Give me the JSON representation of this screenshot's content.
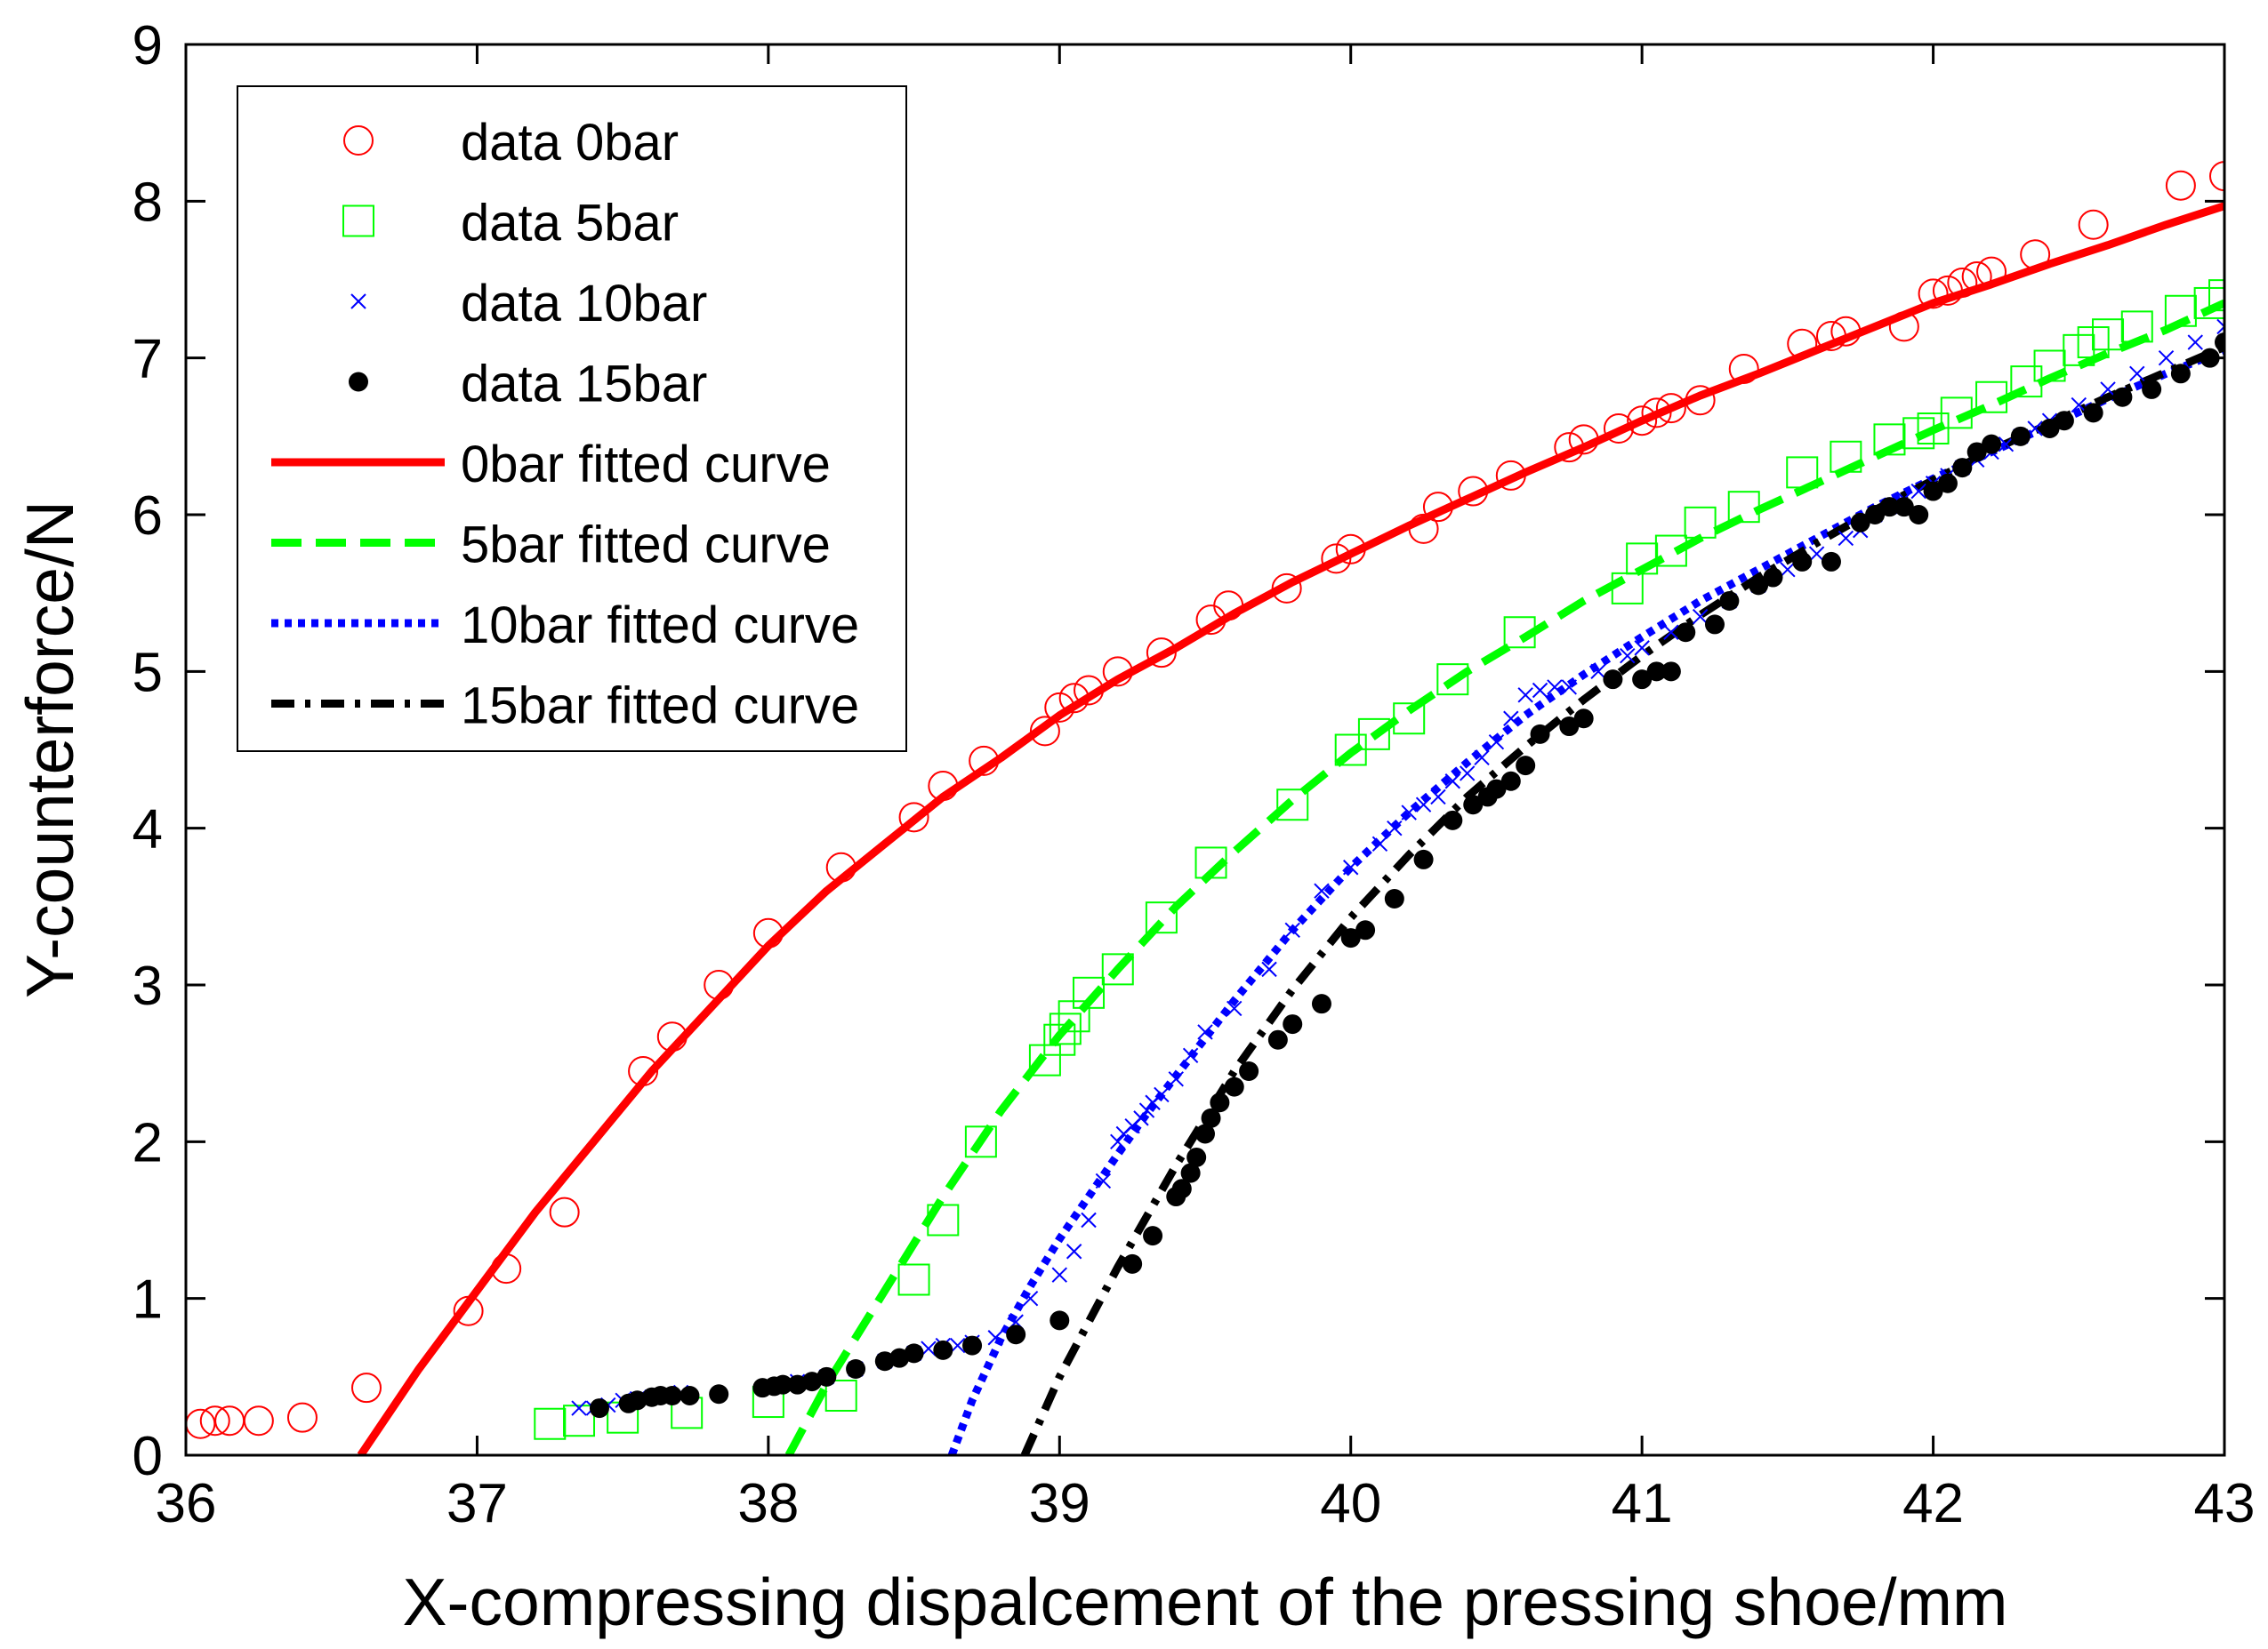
{
  "chart_data": {
    "type": "scatter",
    "xlabel": "X-compressing dispalcement of the pressing shoe/mm",
    "ylabel": "Y-counterforce/N",
    "xlim": [
      36,
      43
    ],
    "ylim": [
      0,
      9
    ],
    "x_ticks": [
      "36",
      "37",
      "38",
      "39",
      "40",
      "41",
      "42",
      "43"
    ],
    "y_ticks": [
      "0",
      "1",
      "2",
      "3",
      "4",
      "5",
      "6",
      "7",
      "8",
      "9"
    ],
    "grid": false,
    "legend_position": "top-left",
    "series": [
      {
        "name": "data 0bar",
        "kind": "markers",
        "marker": "circle",
        "color": "#ff0000",
        "x": [
          36.05,
          36.1,
          36.15,
          36.25,
          36.4,
          36.62,
          36.97,
          37.1,
          37.3,
          37.57,
          37.67,
          37.83,
          38.0,
          38.25,
          38.5,
          38.6,
          38.74,
          38.95,
          39.0,
          39.05,
          39.1,
          39.2,
          39.35,
          39.52,
          39.58,
          39.78,
          39.95,
          40.0,
          40.25,
          40.3,
          40.42,
          40.55,
          40.75,
          40.8,
          40.92,
          41.0,
          41.05,
          41.1,
          41.2,
          41.35,
          41.55,
          41.65,
          41.7,
          41.9,
          42.0,
          42.05,
          42.1,
          42.15,
          42.2,
          42.35,
          42.55,
          42.85,
          43.0
        ],
        "y": [
          0.2,
          0.22,
          0.22,
          0.22,
          0.24,
          0.43,
          0.92,
          1.19,
          1.55,
          2.45,
          2.67,
          3.0,
          3.33,
          3.75,
          4.07,
          4.27,
          4.43,
          4.62,
          4.77,
          4.83,
          4.88,
          5.0,
          5.12,
          5.33,
          5.42,
          5.53,
          5.72,
          5.78,
          5.91,
          6.05,
          6.15,
          6.25,
          6.43,
          6.48,
          6.55,
          6.6,
          6.65,
          6.68,
          6.73,
          6.93,
          7.09,
          7.14,
          7.17,
          7.2,
          7.41,
          7.43,
          7.48,
          7.52,
          7.55,
          7.66,
          7.85,
          8.1,
          8.16
        ]
      },
      {
        "name": "data 5bar",
        "kind": "markers",
        "marker": "square",
        "color": "#00ff00",
        "x": [
          37.25,
          37.35,
          37.5,
          37.72,
          38.0,
          38.25,
          38.5,
          38.6,
          38.73,
          38.95,
          39.0,
          39.02,
          39.05,
          39.1,
          39.2,
          39.35,
          39.52,
          39.8,
          40.0,
          40.08,
          40.2,
          40.35,
          40.58,
          40.95,
          41.0,
          41.1,
          41.2,
          41.35,
          41.55,
          41.7,
          41.85,
          41.95,
          42.0,
          42.08,
          42.2,
          42.32,
          42.4,
          42.5,
          42.55,
          42.6,
          42.7,
          42.85,
          42.95,
          43.0
        ],
        "y": [
          0.2,
          0.22,
          0.24,
          0.27,
          0.34,
          0.38,
          1.12,
          1.5,
          2.0,
          2.52,
          2.65,
          2.72,
          2.8,
          2.95,
          3.1,
          3.43,
          3.78,
          4.15,
          4.5,
          4.6,
          4.7,
          4.95,
          5.25,
          5.53,
          5.72,
          5.77,
          5.95,
          6.05,
          6.27,
          6.37,
          6.48,
          6.52,
          6.55,
          6.65,
          6.75,
          6.85,
          6.95,
          7.05,
          7.1,
          7.15,
          7.2,
          7.3,
          7.35,
          7.4
        ]
      },
      {
        "name": "data 10bar",
        "kind": "markers",
        "marker": "x",
        "color": "#0000ff",
        "x": [
          37.35,
          37.4,
          37.45,
          37.5,
          37.55,
          37.6,
          37.65,
          37.7,
          38.0,
          38.1,
          38.2,
          38.3,
          38.4,
          38.5,
          38.55,
          38.6,
          38.65,
          38.7,
          38.78,
          38.85,
          38.9,
          39.0,
          39.05,
          39.1,
          39.15,
          39.2,
          39.22,
          39.25,
          39.28,
          39.3,
          39.32,
          39.35,
          39.4,
          39.45,
          39.5,
          39.6,
          39.72,
          39.8,
          39.9,
          40.0,
          40.1,
          40.15,
          40.2,
          40.25,
          40.3,
          40.35,
          40.4,
          40.45,
          40.5,
          40.55,
          40.6,
          40.65,
          40.7,
          40.75,
          40.85,
          40.95,
          41.0,
          41.1,
          41.2,
          41.3,
          41.4,
          41.5,
          41.6,
          41.7,
          41.75,
          41.8,
          41.85,
          41.9,
          41.95,
          42.0,
          42.05,
          42.1,
          42.15,
          42.2,
          42.25,
          42.3,
          42.35,
          42.4,
          42.5,
          42.6,
          42.7,
          42.8,
          42.9,
          43.0
        ],
        "y": [
          0.3,
          0.3,
          0.32,
          0.35,
          0.36,
          0.37,
          0.38,
          0.4,
          0.43,
          0.47,
          0.5,
          0.55,
          0.6,
          0.65,
          0.68,
          0.7,
          0.7,
          0.72,
          0.75,
          0.85,
          1.0,
          1.15,
          1.3,
          1.5,
          1.75,
          2.0,
          2.05,
          2.1,
          2.15,
          2.2,
          2.25,
          2.3,
          2.4,
          2.55,
          2.7,
          2.85,
          3.1,
          3.35,
          3.6,
          3.75,
          3.9,
          4.0,
          4.1,
          4.15,
          4.2,
          4.3,
          4.35,
          4.45,
          4.55,
          4.7,
          4.85,
          4.88,
          4.9,
          4.9,
          5.0,
          5.1,
          5.15,
          5.25,
          5.35,
          5.45,
          5.55,
          5.65,
          5.75,
          5.85,
          5.9,
          6.0,
          6.05,
          6.1,
          6.15,
          6.2,
          6.25,
          6.3,
          6.35,
          6.4,
          6.45,
          6.5,
          6.55,
          6.6,
          6.7,
          6.8,
          6.9,
          7.0,
          7.1,
          7.2
        ]
      },
      {
        "name": "data 15bar",
        "kind": "markers",
        "marker": "dot",
        "color": "#000000",
        "x": [
          37.42,
          37.52,
          37.55,
          37.6,
          37.63,
          37.67,
          37.73,
          37.83,
          37.98,
          38.02,
          38.05,
          38.1,
          38.15,
          38.2,
          38.3,
          38.4,
          38.45,
          38.5,
          38.6,
          38.7,
          38.85,
          39.0,
          39.25,
          39.32,
          39.4,
          39.42,
          39.45,
          39.47,
          39.5,
          39.52,
          39.55,
          39.6,
          39.65,
          39.75,
          39.8,
          39.9,
          40.0,
          40.05,
          40.15,
          40.25,
          40.35,
          40.42,
          40.47,
          40.5,
          40.55,
          40.6,
          40.65,
          40.75,
          40.8,
          40.9,
          41.0,
          41.05,
          41.1,
          41.15,
          41.25,
          41.3,
          41.4,
          41.45,
          41.55,
          41.65,
          41.75,
          41.8,
          41.85,
          41.9,
          41.95,
          42.0,
          42.05,
          42.1,
          42.15,
          42.2,
          42.3,
          42.4,
          42.45,
          42.55,
          42.65,
          42.75,
          42.85,
          42.95,
          43.0
        ],
        "y": [
          0.3,
          0.33,
          0.35,
          0.37,
          0.38,
          0.38,
          0.38,
          0.39,
          0.43,
          0.44,
          0.45,
          0.45,
          0.47,
          0.5,
          0.55,
          0.6,
          0.62,
          0.65,
          0.67,
          0.7,
          0.77,
          0.86,
          1.22,
          1.4,
          1.65,
          1.7,
          1.8,
          1.9,
          2.05,
          2.15,
          2.25,
          2.35,
          2.45,
          2.65,
          2.75,
          2.88,
          3.3,
          3.35,
          3.55,
          3.8,
          4.05,
          4.15,
          4.2,
          4.25,
          4.3,
          4.4,
          4.6,
          4.65,
          4.7,
          4.95,
          4.95,
          5.0,
          5.0,
          5.25,
          5.3,
          5.45,
          5.55,
          5.6,
          5.7,
          5.7,
          5.95,
          6.0,
          6.05,
          6.05,
          6.0,
          6.15,
          6.2,
          6.3,
          6.4,
          6.45,
          6.5,
          6.55,
          6.6,
          6.65,
          6.75,
          6.8,
          6.9,
          7.0,
          7.1
        ]
      },
      {
        "name": "0bar fitted curve",
        "kind": "line",
        "dash": "solid",
        "color": "#ff0000",
        "x": [
          36.6,
          36.8,
          37.0,
          37.2,
          37.4,
          37.6,
          37.8,
          38.0,
          38.2,
          38.4,
          38.6,
          38.8,
          39.0,
          39.2,
          39.4,
          39.6,
          39.8,
          40.0,
          40.2,
          40.4,
          40.6,
          40.8,
          41.0,
          41.2,
          41.4,
          41.6,
          41.8,
          42.0,
          42.2,
          42.4,
          42.6,
          42.8,
          43.0
        ],
        "y": [
          0.0,
          0.55,
          1.05,
          1.55,
          2.0,
          2.45,
          2.85,
          3.25,
          3.6,
          3.9,
          4.2,
          4.45,
          4.72,
          4.95,
          5.15,
          5.37,
          5.57,
          5.75,
          5.93,
          6.1,
          6.27,
          6.43,
          6.6,
          6.76,
          6.9,
          7.05,
          7.2,
          7.35,
          7.47,
          7.6,
          7.72,
          7.85,
          7.97
        ]
      },
      {
        "name": "5bar fitted curve",
        "kind": "line",
        "dash": "dashed",
        "color": "#00ff00",
        "x": [
          38.07,
          38.2,
          38.4,
          38.6,
          38.8,
          39.0,
          39.2,
          39.4,
          39.6,
          39.8,
          40.0,
          40.2,
          40.4,
          40.6,
          40.8,
          41.0,
          41.2,
          41.4,
          41.6,
          41.8,
          42.0,
          42.2,
          42.4,
          42.6,
          42.8,
          43.0
        ],
        "y": [
          0.0,
          0.45,
          1.05,
          1.65,
          2.2,
          2.68,
          3.1,
          3.5,
          3.85,
          4.18,
          4.48,
          4.75,
          5.0,
          5.22,
          5.45,
          5.65,
          5.85,
          6.03,
          6.2,
          6.37,
          6.54,
          6.7,
          6.87,
          7.03,
          7.18,
          7.35
        ]
      },
      {
        "name": "10bar fitted curve",
        "kind": "line",
        "dash": "dotted",
        "color": "#0000ff",
        "x": [
          38.63,
          38.7,
          38.8,
          38.9,
          39.0,
          39.1,
          39.2,
          39.3,
          39.4,
          39.6,
          39.8,
          40.0,
          40.2,
          40.4,
          40.6,
          40.8,
          41.0,
          41.2,
          41.4,
          41.6,
          41.8,
          42.0,
          42.2,
          42.4,
          42.6,
          42.8,
          43.0
        ],
        "y": [
          0.0,
          0.35,
          0.75,
          1.08,
          1.38,
          1.65,
          1.92,
          2.18,
          2.42,
          2.9,
          3.35,
          3.75,
          4.1,
          4.42,
          4.72,
          4.98,
          5.22,
          5.45,
          5.65,
          5.85,
          6.05,
          6.23,
          6.4,
          6.57,
          6.74,
          6.9,
          7.05
        ]
      },
      {
        "name": "15bar fitted curve",
        "kind": "line",
        "dash": "dashdot",
        "color": "#000000",
        "x": [
          38.88,
          39.0,
          39.2,
          39.4,
          39.6,
          39.8,
          40.0,
          40.2,
          40.4,
          40.6,
          40.8,
          41.0,
          41.2,
          41.4,
          41.6,
          41.8,
          42.0,
          42.2,
          42.4,
          42.6,
          42.8,
          43.0
        ],
        "y": [
          0.0,
          0.5,
          1.2,
          1.85,
          2.45,
          2.97,
          3.43,
          3.83,
          4.2,
          4.52,
          4.82,
          5.1,
          5.36,
          5.6,
          5.82,
          6.03,
          6.22,
          6.41,
          6.58,
          6.75,
          6.91,
          7.07
        ]
      }
    ]
  }
}
